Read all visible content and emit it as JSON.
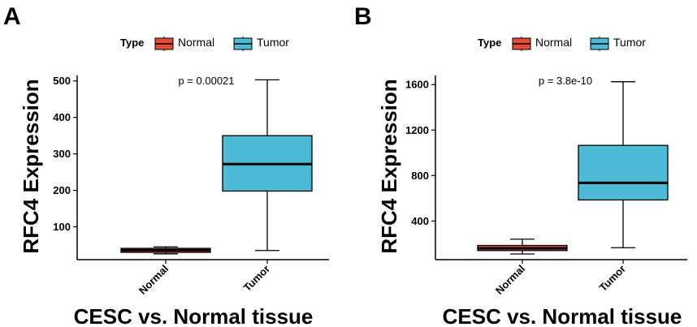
{
  "chart_data": [
    {
      "panel": "A",
      "type": "box",
      "legend_title": "Type",
      "legend": [
        {
          "name": "Normal",
          "color": "#E64B35"
        },
        {
          "name": "Tumor",
          "color": "#4DBBD5"
        }
      ],
      "pvalue": "p = 0.00021",
      "xlabel": "CESC vs. Normal tissue",
      "ylabel": "RFC4 Expression",
      "categories": [
        "Normal",
        "Tumor"
      ],
      "yticks": [
        100,
        200,
        300,
        400,
        500
      ],
      "ytick_labels": [
        "100",
        "200",
        "300",
        "400",
        "500"
      ],
      "ylim": [
        10,
        515
      ],
      "boxes": [
        {
          "name": "Normal",
          "whisker_low": 26,
          "q1": 30,
          "median": 36,
          "q3": 41,
          "whisker_high": 45
        },
        {
          "name": "Tumor",
          "whisker_low": 35,
          "q1": 198,
          "median": 272,
          "q3": 350,
          "whisker_high": 503
        }
      ]
    },
    {
      "panel": "B",
      "type": "box",
      "legend_title": "Type",
      "legend": [
        {
          "name": "Normal",
          "color": "#E64B35"
        },
        {
          "name": "Tumor",
          "color": "#4DBBD5"
        }
      ],
      "pvalue": "p = 3.8e-10",
      "xlabel": "CESC vs. Normal tissue",
      "ylabel": "RFC4 Expression",
      "categories": [
        "Normal",
        "Tumor"
      ],
      "yticks": [
        400,
        800,
        1200,
        1600
      ],
      "ytick_labels": [
        "400",
        "800",
        "1200",
        "1600"
      ],
      "ylim": [
        60,
        1680
      ],
      "boxes": [
        {
          "name": "Normal",
          "whisker_low": 110,
          "q1": 140,
          "median": 160,
          "q3": 185,
          "whisker_high": 240
        },
        {
          "name": "Tumor",
          "whisker_low": 165,
          "q1": 585,
          "median": 735,
          "q3": 1065,
          "whisker_high": 1625
        }
      ]
    }
  ]
}
